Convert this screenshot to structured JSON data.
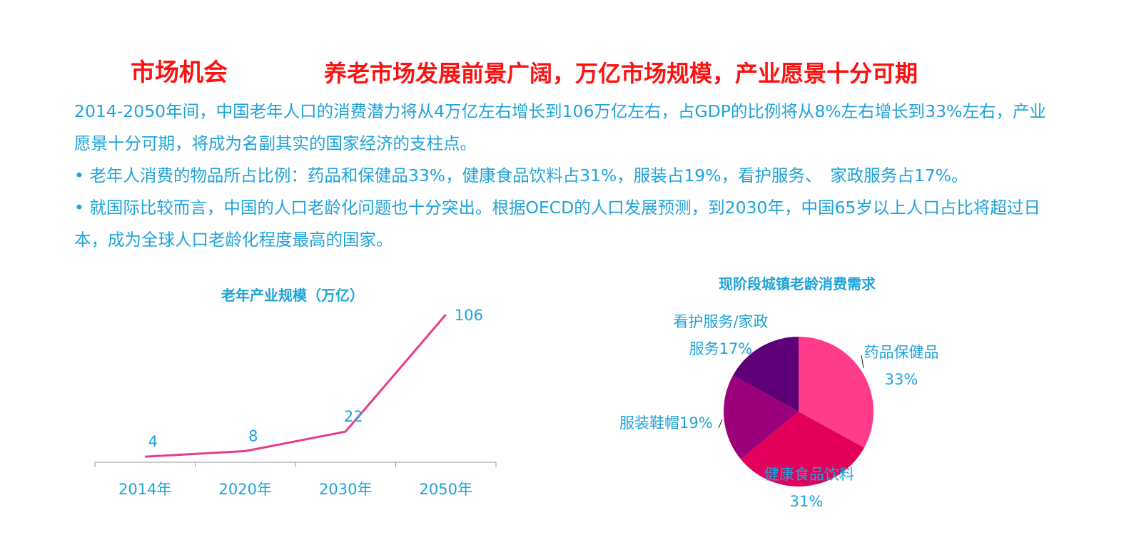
{
  "header": {
    "section_title": "市场机会",
    "headline": "养老市场发展前景广阔，万亿市场规模，产业愿景十分可期"
  },
  "body": {
    "paragraph1": "2014-2050年间，中国老年人口的消费潜力将从4万亿左右增长到106万亿左右，占GDP的比例将从8%左右增长到33%左右，产业愿景十分可期，将成为名副其实的国家经济的支柱点。",
    "bullet1": "• 老年人消费的物品所占比例：药品和保健品33%，健康食品饮料占31%，服装占19%，看护服务、　家政服务占17%。",
    "bullet2": "• 就国际比较而言，中国的人口老龄化问题也十分突出。根据OECD的人口发展预测，到2030年，中国65岁以上人口占比将超过日本，成为全球人口老龄化程度最高的国家。"
  },
  "colors": {
    "headline_red": "#ff1010",
    "text_blue": "#1fa3d8",
    "line_pink": "#ea3a8b"
  },
  "chart_data": [
    {
      "type": "line",
      "title": "老年产业规模（万亿）",
      "categories": [
        "2014年",
        "2020年",
        "2030年",
        "2050年"
      ],
      "values": [
        4,
        8,
        22,
        106
      ],
      "data_labels": [
        "4",
        "8",
        "22",
        "106"
      ],
      "ylim": [
        0,
        106
      ],
      "grid": false,
      "color": "#ea3a8b"
    },
    {
      "type": "pie",
      "title": "现阶段城镇老龄消费需求",
      "slices": [
        {
          "label": "药品保健品",
          "pct_label": "33%",
          "value": 33,
          "color": "#ff3b8c"
        },
        {
          "label": "健康食品饮料",
          "pct_label": "31%",
          "value": 31,
          "color": "#e2005a"
        },
        {
          "label": "服装鞋帽19%",
          "pct_label": "",
          "value": 19,
          "color": "#9c007a"
        },
        {
          "label": "看护服务/家政",
          "pct_label": "服务17%",
          "value": 17,
          "color": "#5f0078"
        }
      ]
    }
  ]
}
